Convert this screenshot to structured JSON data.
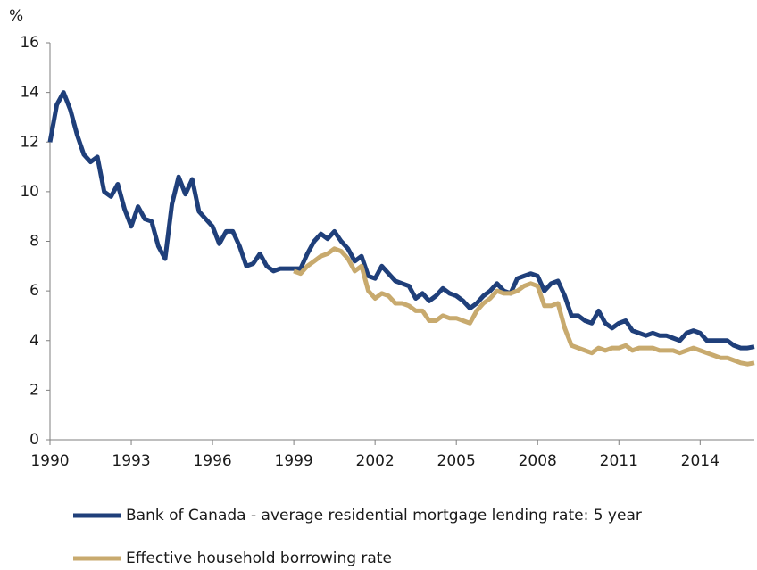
{
  "chart_data": {
    "type": "line",
    "y_axis_label": "%",
    "x": [
      1990,
      1990.25,
      1990.5,
      1990.75,
      1991,
      1991.25,
      1991.5,
      1991.75,
      1992,
      1992.25,
      1992.5,
      1992.75,
      1993,
      1993.25,
      1993.5,
      1993.75,
      1994,
      1994.25,
      1994.5,
      1994.75,
      1995,
      1995.25,
      1995.5,
      1995.75,
      1996,
      1996.25,
      1996.5,
      1996.75,
      1997,
      1997.25,
      1997.5,
      1997.75,
      1998,
      1998.25,
      1998.5,
      1998.75,
      1999,
      1999.25,
      1999.5,
      1999.75,
      2000,
      2000.25,
      2000.5,
      2000.75,
      2001,
      2001.25,
      2001.5,
      2001.75,
      2002,
      2002.25,
      2002.5,
      2002.75,
      2003,
      2003.25,
      2003.5,
      2003.75,
      2004,
      2004.25,
      2004.5,
      2004.75,
      2005,
      2005.25,
      2005.5,
      2005.75,
      2006,
      2006.25,
      2006.5,
      2006.75,
      2007,
      2007.25,
      2007.5,
      2007.75,
      2008,
      2008.25,
      2008.5,
      2008.75,
      2009,
      2009.25,
      2009.5,
      2009.75,
      2010,
      2010.25,
      2010.5,
      2010.75,
      2011,
      2011.25,
      2011.5,
      2011.75,
      2012,
      2012.25,
      2012.5,
      2012.75,
      2013,
      2013.25,
      2013.5,
      2013.75,
      2014,
      2014.25,
      2014.5,
      2014.75,
      2015,
      2015.25,
      2015.5,
      2015.75,
      2016
    ],
    "series": [
      {
        "name": "Bank of Canada - average residential mortgage lending rate: 5 year",
        "color": "#1f3f7a",
        "values": [
          12.0,
          13.5,
          14.0,
          13.3,
          12.3,
          11.5,
          11.2,
          11.4,
          10.0,
          9.8,
          10.3,
          9.3,
          8.6,
          9.4,
          8.9,
          8.8,
          7.8,
          7.3,
          9.5,
          10.6,
          9.9,
          10.5,
          9.2,
          8.9,
          8.6,
          7.9,
          8.4,
          8.4,
          7.8,
          7.0,
          7.1,
          7.5,
          7.0,
          6.8,
          6.9,
          6.9,
          6.9,
          6.9,
          7.5,
          8.0,
          8.3,
          8.1,
          8.4,
          8.0,
          7.7,
          7.2,
          7.4,
          6.6,
          6.5,
          7.0,
          6.7,
          6.4,
          6.3,
          6.2,
          5.7,
          5.9,
          5.6,
          5.8,
          6.1,
          5.9,
          5.8,
          5.6,
          5.3,
          5.5,
          5.8,
          6.0,
          6.3,
          6.0,
          5.9,
          6.5,
          6.6,
          6.7,
          6.6,
          6.0,
          6.3,
          6.4,
          5.8,
          5.0,
          5.0,
          4.8,
          4.7,
          5.2,
          4.7,
          4.5,
          4.7,
          4.8,
          4.4,
          4.3,
          4.2,
          4.3,
          4.2,
          4.2,
          4.1,
          4.0,
          4.3,
          4.4,
          4.3,
          4.0,
          4.0,
          4.0,
          4.0,
          3.8,
          3.7,
          3.7,
          3.75
        ]
      },
      {
        "name": "Effective household borrowing rate",
        "color": "#c8aa6e",
        "values": [
          null,
          null,
          null,
          null,
          null,
          null,
          null,
          null,
          null,
          null,
          null,
          null,
          null,
          null,
          null,
          null,
          null,
          null,
          null,
          null,
          null,
          null,
          null,
          null,
          null,
          null,
          null,
          null,
          null,
          null,
          null,
          null,
          null,
          null,
          null,
          null,
          6.8,
          6.7,
          7.0,
          7.2,
          7.4,
          7.5,
          7.7,
          7.6,
          7.3,
          6.8,
          7.0,
          6.0,
          5.7,
          5.9,
          5.8,
          5.5,
          5.5,
          5.4,
          5.2,
          5.2,
          4.8,
          4.8,
          5.0,
          4.9,
          4.9,
          4.8,
          4.7,
          5.2,
          5.5,
          5.7,
          6.0,
          5.9,
          5.9,
          6.0,
          6.2,
          6.3,
          6.2,
          5.4,
          5.4,
          5.5,
          4.5,
          3.8,
          3.7,
          3.6,
          3.5,
          3.7,
          3.6,
          3.7,
          3.7,
          3.8,
          3.6,
          3.7,
          3.7,
          3.7,
          3.6,
          3.6,
          3.6,
          3.5,
          3.6,
          3.7,
          3.6,
          3.5,
          3.4,
          3.3,
          3.3,
          3.2,
          3.1,
          3.05,
          3.1
        ]
      }
    ],
    "xlim": [
      1990,
      2016
    ],
    "xticks": [
      1990,
      1993,
      1996,
      1999,
      2002,
      2005,
      2008,
      2011,
      2014
    ],
    "ylim": [
      0,
      16
    ],
    "yticks": [
      0,
      2,
      4,
      6,
      8,
      10,
      12,
      14,
      16
    ],
    "grid": false,
    "legend": "bottom"
  }
}
